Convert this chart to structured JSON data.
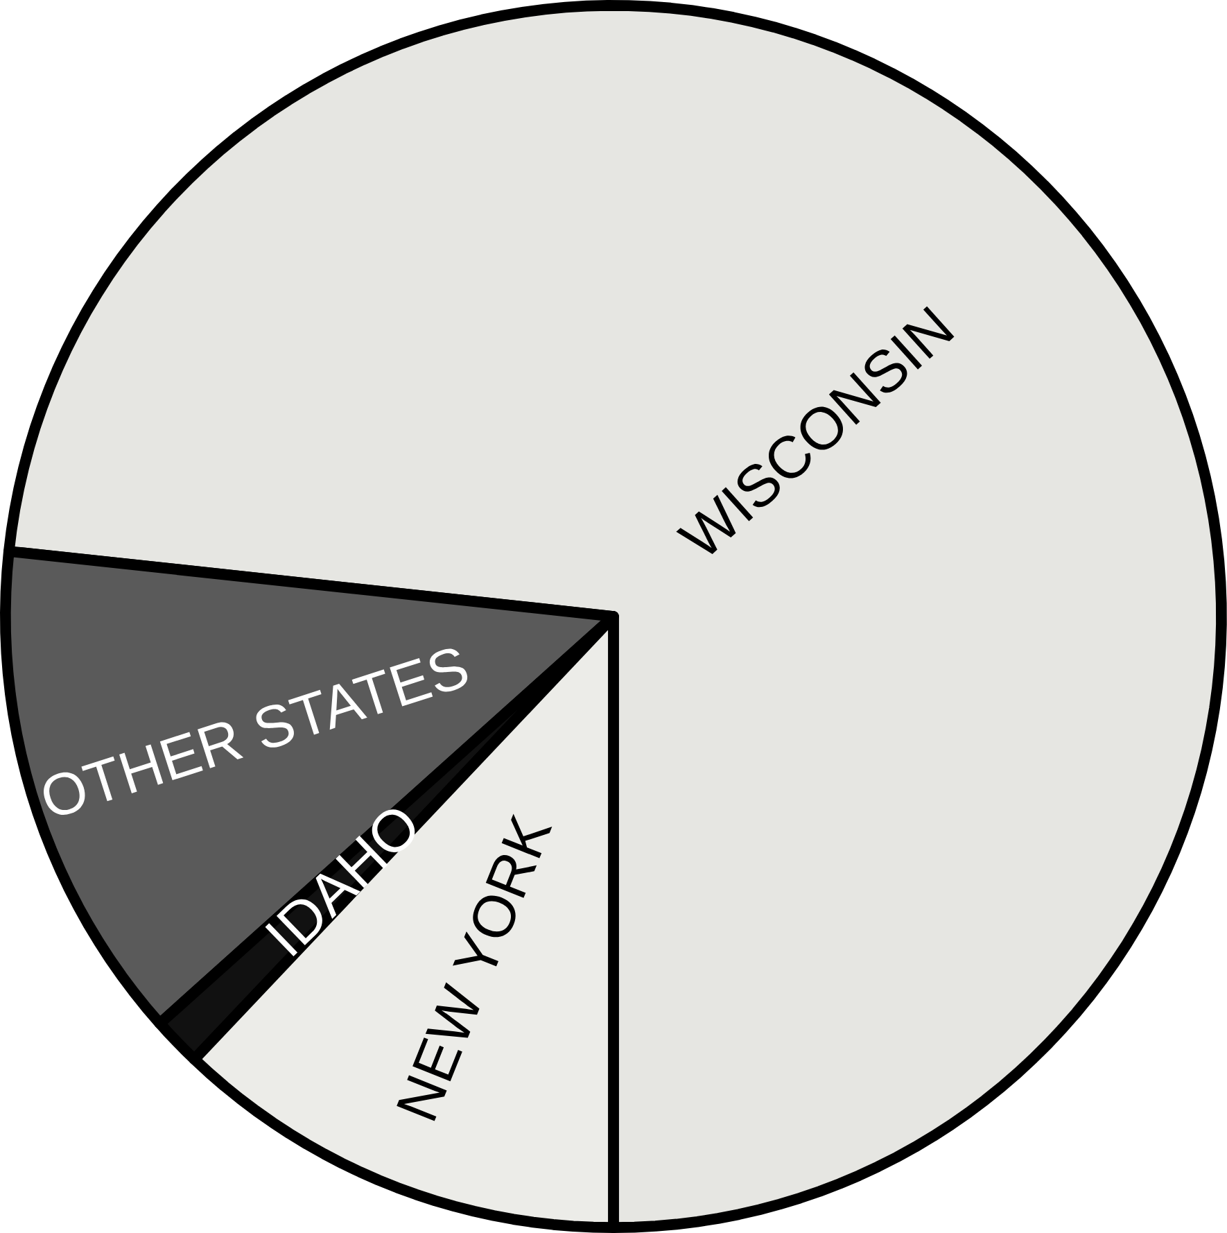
{
  "chart_data": {
    "type": "pie",
    "categories": [
      "WISCONSIN",
      "OTHER STATES",
      "IDAHO",
      "NEW YORK"
    ],
    "values": [
      73.3,
      13.3,
      1.3,
      12.1
    ],
    "colors": [
      "#e6e6e2",
      "#5a5a5a",
      "#111111",
      "#ecece8"
    ]
  }
}
